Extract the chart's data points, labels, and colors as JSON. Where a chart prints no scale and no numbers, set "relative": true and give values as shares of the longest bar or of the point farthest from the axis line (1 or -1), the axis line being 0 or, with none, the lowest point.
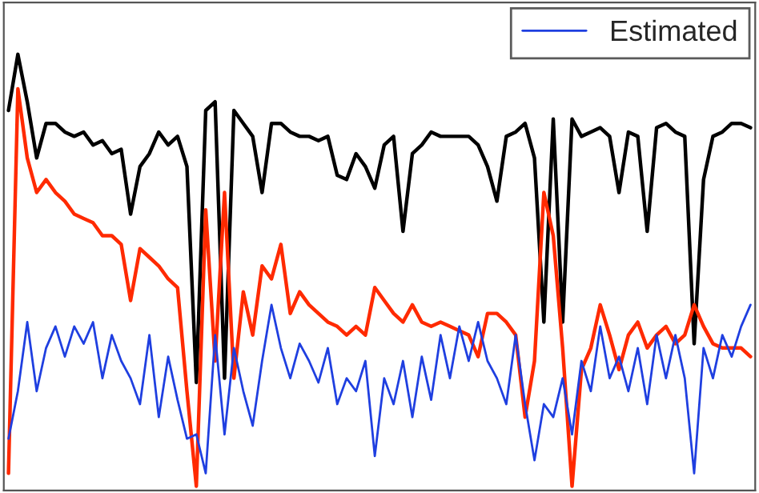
{
  "chart_data": {
    "type": "line",
    "relative": true,
    "legend": "top right",
    "grid": false,
    "marker": "none",
    "line_style": "solid",
    "categories": [
      null,
      null,
      null,
      null,
      null,
      null,
      null,
      null,
      null,
      null,
      null,
      null,
      null,
      null,
      null,
      null,
      null,
      null,
      null,
      null,
      null,
      null,
      null,
      null,
      null,
      null,
      null,
      null,
      null,
      null,
      null,
      null,
      null,
      null,
      null,
      null,
      null,
      null,
      null,
      null,
      null,
      null,
      null,
      null,
      null,
      null,
      null,
      null,
      null,
      null,
      null,
      null,
      null,
      null,
      null,
      null,
      null,
      null,
      null,
      null,
      null,
      null,
      null,
      null,
      null,
      null,
      null,
      null,
      null,
      null,
      null,
      null,
      null,
      null,
      null,
      null,
      null,
      null,
      null,
      null
    ],
    "series": [
      {
        "color": "#000000",
        "values": [
          0.87,
          1.0,
          0.89,
          0.76,
          0.84,
          0.84,
          0.82,
          0.81,
          0.82,
          0.79,
          0.8,
          0.77,
          0.78,
          0.63,
          0.74,
          0.77,
          0.82,
          0.79,
          0.81,
          0.74,
          0.24,
          0.87,
          0.89,
          0.25,
          0.87,
          0.84,
          0.81,
          0.68,
          0.84,
          0.84,
          0.82,
          0.81,
          0.81,
          0.8,
          0.81,
          0.72,
          0.71,
          0.77,
          0.74,
          0.69,
          0.79,
          0.81,
          0.59,
          0.77,
          0.79,
          0.82,
          0.81,
          0.81,
          0.81,
          0.81,
          0.79,
          0.74,
          0.66,
          0.81,
          0.82,
          0.84,
          0.76,
          0.38,
          0.85,
          0.38,
          0.85,
          0.81,
          0.82,
          0.83,
          0.81,
          0.68,
          0.82,
          0.81,
          0.59,
          0.83,
          0.84,
          0.82,
          0.81,
          0.33,
          0.71,
          0.81,
          0.82,
          0.84,
          0.84,
          0.83
        ]
      },
      {
        "color": "#ff2a00",
        "values": [
          0.03,
          0.92,
          0.76,
          0.68,
          0.71,
          0.68,
          0.66,
          0.63,
          0.62,
          0.61,
          0.58,
          0.58,
          0.56,
          0.43,
          0.55,
          0.53,
          0.51,
          0.48,
          0.46,
          0.22,
          0,
          0.64,
          0.29,
          0.68,
          0.25,
          0.45,
          0.35,
          0.51,
          0.48,
          0.56,
          0.4,
          0.45,
          0.42,
          0.4,
          0.38,
          0.37,
          0.35,
          0.37,
          0.35,
          0.46,
          0.43,
          0.4,
          0.38,
          0.42,
          0.38,
          0.37,
          0.38,
          0.37,
          0.36,
          0.35,
          0.3,
          0.4,
          0.4,
          0.38,
          0.35,
          0.16,
          0.29,
          0.68,
          0.58,
          0.32,
          0,
          0.27,
          0.32,
          0.42,
          0.35,
          0.27,
          0.35,
          0.38,
          0.32,
          0.35,
          0.37,
          0.33,
          0.35,
          0.42,
          0.37,
          0.33,
          0.32,
          0.32,
          0.32,
          0.3
        ]
      },
      {
        "name": "Estimated",
        "color": "#1f3fe0",
        "values": [
          0.11,
          0.22,
          0.38,
          0.22,
          0.32,
          0.37,
          0.3,
          0.37,
          0.33,
          0.38,
          0.25,
          0.35,
          0.29,
          0.25,
          0.19,
          0.35,
          0.16,
          0.3,
          0.2,
          0.11,
          0.12,
          0.03,
          0.35,
          0.12,
          0.32,
          0.22,
          0.14,
          0.29,
          0.42,
          0.32,
          0.25,
          0.33,
          0.29,
          0.24,
          0.32,
          0.19,
          0.25,
          0.22,
          0.29,
          0.07,
          0.25,
          0.19,
          0.29,
          0.16,
          0.3,
          0.2,
          0.35,
          0.25,
          0.37,
          0.29,
          0.38,
          0.29,
          0.25,
          0.19,
          0.35,
          0.19,
          0.06,
          0.19,
          0.16,
          0.25,
          0.12,
          0.29,
          0.22,
          0.37,
          0.25,
          0.3,
          0.22,
          0.32,
          0.19,
          0.35,
          0.25,
          0.35,
          0.25,
          0.03,
          0.32,
          0.25,
          0.35,
          0.3,
          0.37,
          0.42
        ]
      }
    ]
  }
}
